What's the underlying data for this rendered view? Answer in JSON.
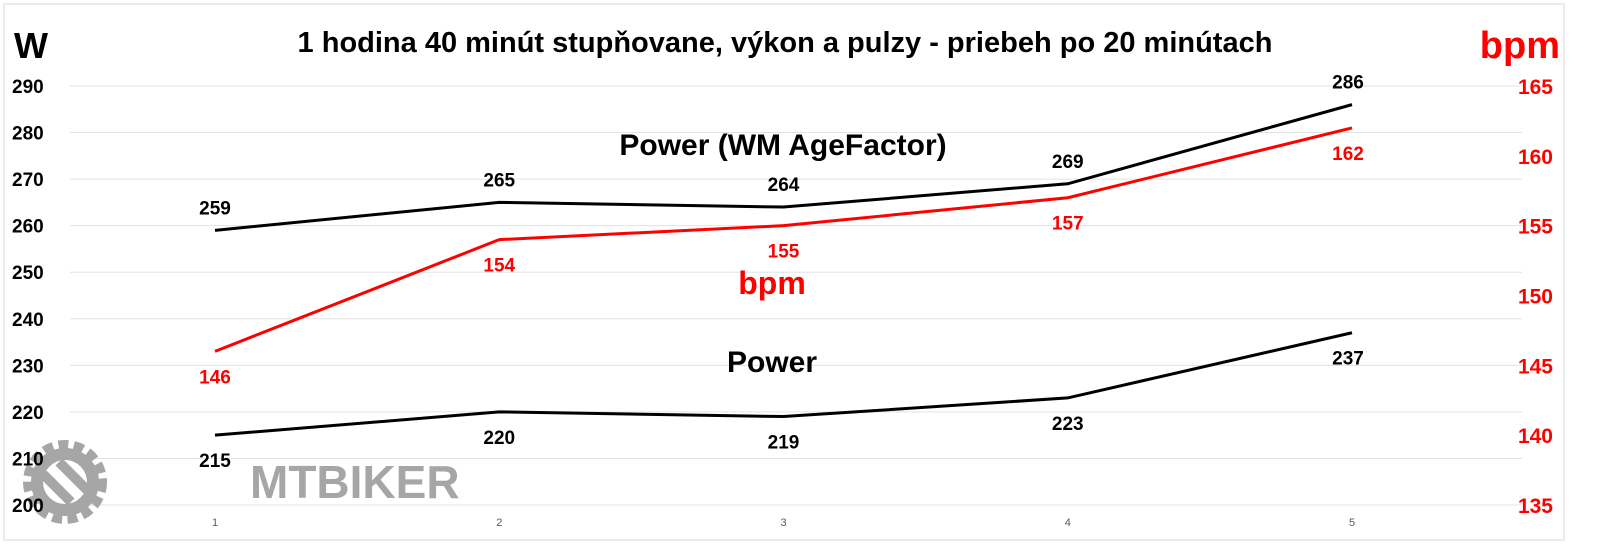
{
  "chart_data": {
    "type": "line",
    "title": "1 hodina 40 minút stupňovane, výkon a pulzy - priebeh po 20 minútach",
    "ylabel_left": "W",
    "ylabel_right": "bpm",
    "categories": [
      "1",
      "2",
      "3",
      "4",
      "5"
    ],
    "ylim_left": [
      200,
      290
    ],
    "yticks_left": [
      "200",
      "210",
      "220",
      "230",
      "240",
      "250",
      "260",
      "270",
      "280",
      "290"
    ],
    "ylim_right": [
      135,
      165
    ],
    "yticks_right": [
      "135",
      "140",
      "145",
      "150",
      "155",
      "160",
      "165"
    ],
    "grid": true,
    "series": [
      {
        "name": "Power (WM AgeFactor)",
        "axis": "left",
        "color": "#000000",
        "values": [
          259,
          265,
          264,
          269,
          286
        ],
        "label_pos": "above"
      },
      {
        "name": "bpm",
        "axis": "right",
        "color": "#ff0000",
        "values": [
          146,
          154,
          155,
          157,
          162
        ],
        "label_pos": "below"
      },
      {
        "name": "Power",
        "axis": "left",
        "color": "#000000",
        "values": [
          215,
          220,
          219,
          223,
          237
        ],
        "label_pos": "below"
      }
    ],
    "watermark": "MTBIKER"
  }
}
